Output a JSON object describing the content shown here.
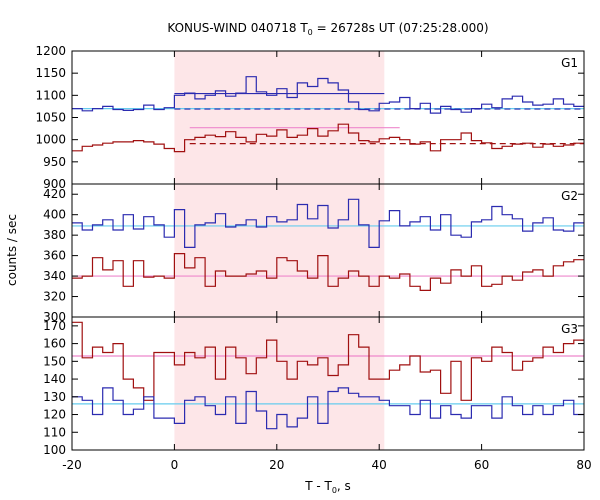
{
  "chart_data": {
    "type": "line",
    "title_main": "KONUS-WIND 040718 T",
    "title_sub": "0",
    "title_rest": " = 26728s UT (07:25:28.000)",
    "xlabel_main": "T - T",
    "xlabel_sub": "0",
    "xlabel_rest": ", s",
    "ylabel": "counts / sec",
    "xlim": [
      -20,
      80
    ],
    "x_ticks": [
      "-20",
      "0",
      "20",
      "40",
      "60",
      "80"
    ],
    "x_tick_values": [
      -20,
      0,
      20,
      40,
      60,
      80
    ],
    "highlight_interval": [
      0,
      41
    ],
    "colors": {
      "blue": "#2b2bb0",
      "red": "#a01010",
      "cyan": "#66ccee",
      "pink": "#ee88cc",
      "highlight": "#fde6e8"
    },
    "bin_width": 2,
    "x_start": -20,
    "panels": [
      {
        "label": "G1",
        "ylim": [
          900,
          1200
        ],
        "y_ticks": [
          900,
          950,
          1000,
          1050,
          1100,
          1150,
          1200
        ],
        "y_tick_labels": [
          "900",
          "950",
          "1000",
          "1050",
          "1100",
          "1150",
          "1200"
        ],
        "series": [
          {
            "color": "blue",
            "values": [
              1070,
              1065,
              1070,
              1075,
              1068,
              1066,
              1068,
              1078,
              1068,
              1072,
              1100,
              1105,
              1092,
              1100,
              1110,
              1098,
              1105,
              1142,
              1108,
              1100,
              1115,
              1095,
              1128,
              1120,
              1138,
              1128,
              1112,
              1085,
              1068,
              1065,
              1082,
              1085,
              1095,
              1070,
              1082,
              1060,
              1075,
              1068,
              1062,
              1070,
              1080,
              1072,
              1092,
              1098,
              1085,
              1078,
              1080,
              1092,
              1080,
              1075
            ]
          },
          {
            "color": "red",
            "values": [
              975,
              985,
              988,
              992,
              995,
              995,
              998,
              995,
              990,
              980,
              973,
              1000,
              1005,
              1010,
              1007,
              1018,
              1005,
              995,
              1012,
              1008,
              1022,
              1005,
              1010,
              1025,
              1008,
              1020,
              1035,
              1015,
              998,
              995,
              1002,
              1005,
              1000,
              990,
              995,
              975,
              1000,
              1000,
              1015,
              998,
              993,
              980,
              985,
              990,
              992,
              983,
              990,
              985,
              988,
              992
            ]
          }
        ],
        "refs": [
          {
            "color": "cyan",
            "style": "solid",
            "value": 1070,
            "x0": -20,
            "x1": 80
          },
          {
            "color": "blue",
            "style": "solid",
            "value": 1104,
            "x0": 0,
            "x1": 41
          },
          {
            "color": "blue",
            "style": "dashed",
            "value": 1069,
            "x0": 0,
            "x1": 80
          },
          {
            "color": "pink",
            "style": "solid",
            "value": 1027,
            "x0": 3,
            "x1": 44
          },
          {
            "color": "red",
            "style": "dashed",
            "value": 991,
            "x0": 3,
            "x1": 80
          }
        ]
      },
      {
        "label": "G2",
        "ylim": [
          300,
          430
        ],
        "y_ticks": [
          300,
          320,
          340,
          360,
          380,
          400,
          420
        ],
        "y_tick_labels": [
          "300",
          "320",
          "340",
          "360",
          "380",
          "400",
          "420"
        ],
        "series": [
          {
            "color": "blue",
            "values": [
              392,
              385,
              390,
              395,
              385,
              400,
              386,
              398,
              390,
              378,
              405,
              368,
              390,
              392,
              401,
              388,
              390,
              395,
              388,
              398,
              393,
              395,
              410,
              396,
              409,
              387,
              395,
              415,
              390,
              368,
              394,
              404,
              389,
              393,
              398,
              385,
              400,
              380,
              378,
              393,
              395,
              408,
              400,
              396,
              384,
              392,
              397,
              385,
              384,
              392
            ]
          },
          {
            "color": "red",
            "values": [
              338,
              340,
              358,
              346,
              355,
              330,
              355,
              339,
              340,
              338,
              362,
              348,
              358,
              330,
              345,
              340,
              340,
              342,
              345,
              338,
              358,
              355,
              345,
              338,
              360,
              330,
              338,
              345,
              340,
              330,
              340,
              338,
              342,
              330,
              326,
              338,
              333,
              346,
              340,
              350,
              330,
              332,
              340,
              336,
              344,
              346,
              340,
              350,
              354,
              356
            ]
          }
        ],
        "refs": [
          {
            "color": "cyan",
            "style": "solid",
            "value": 389,
            "x0": -20,
            "x1": 80
          },
          {
            "color": "pink",
            "style": "solid",
            "value": 340,
            "x0": -20,
            "x1": 80
          }
        ]
      },
      {
        "label": "G3",
        "ylim": [
          100,
          175
        ],
        "y_ticks": [
          100,
          110,
          120,
          130,
          140,
          150,
          160,
          170
        ],
        "y_tick_labels": [
          "100",
          "110",
          "120",
          "130",
          "140",
          "150",
          "160",
          "170"
        ],
        "series": [
          {
            "color": "red",
            "values": [
              172,
              152,
              158,
              155,
              160,
              140,
              135,
              128,
              155,
              155,
              148,
              155,
              152,
              158,
              140,
              158,
              152,
              143,
              152,
              162,
              150,
              140,
              150,
              148,
              152,
              142,
              148,
              165,
              158,
              140,
              140,
              145,
              148,
              153,
              144,
              145,
              132,
              150,
              128,
              152,
              150,
              158,
              155,
              145,
              150,
              152,
              158,
              155,
              160,
              162
            ]
          },
          {
            "color": "blue",
            "values": [
              130,
              128,
              120,
              135,
              128,
              120,
              123,
              130,
              118,
              118,
              115,
              128,
              130,
              125,
              120,
              130,
              115,
              133,
              122,
              112,
              120,
              113,
              118,
              130,
              115,
              133,
              135,
              132,
              130,
              130,
              128,
              125,
              125,
              120,
              128,
              118,
              125,
              120,
              118,
              125,
              125,
              118,
              130,
              125,
              120,
              125,
              120,
              125,
              128,
              120
            ]
          }
        ],
        "refs": [
          {
            "color": "cyan",
            "style": "solid",
            "value": 126,
            "x0": -20,
            "x1": 80
          },
          {
            "color": "pink",
            "style": "solid",
            "value": 153,
            "x0": -20,
            "x1": 80
          }
        ]
      }
    ]
  }
}
